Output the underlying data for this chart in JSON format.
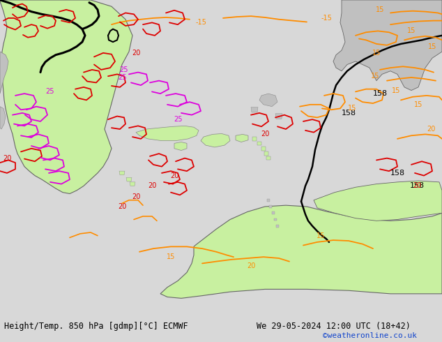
{
  "title_left": "Height/Temp. 850 hPa [gdmp][°C] ECMWF",
  "title_right": "We 29-05-2024 12:00 UTC (18+42)",
  "credit": "©weatheronline.co.uk",
  "bg_color": "#d8d8d8",
  "land_green": "#c8f0a0",
  "land_gray": "#c0c0c0",
  "orange": "#ff8c00",
  "red": "#dd0000",
  "magenta": "#dd00dd",
  "black": "#000000",
  "green_c": "#00aa00",
  "white": "#ffffff",
  "credit_color": "#1144cc",
  "figsize": [
    6.34,
    4.9
  ],
  "dpi": 100
}
